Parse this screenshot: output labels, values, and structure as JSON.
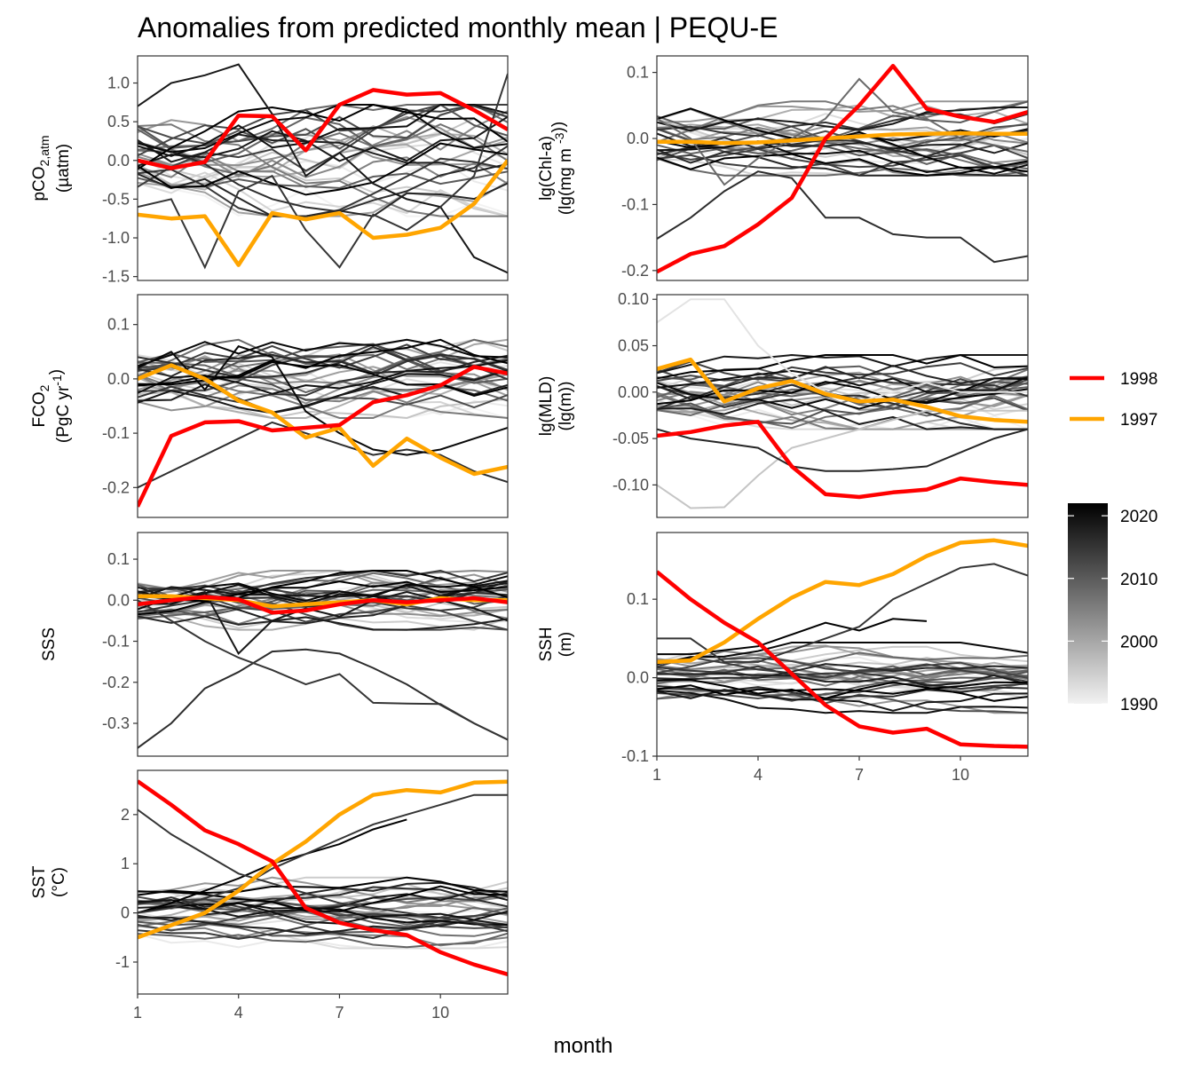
{
  "title": "Anomalies from predicted monthly mean | PEQU-E",
  "xlabel": "month",
  "legend": {
    "highlight": [
      {
        "name": "1998",
        "color": "#ff0000"
      },
      {
        "name": "1997",
        "color": "#ffa500"
      }
    ],
    "colorbar": {
      "min": 1990,
      "max": 2022,
      "ticks": [
        "1990",
        "2000",
        "2010",
        "2020"
      ],
      "low_color": "#f2f2f2",
      "high_color": "#000000"
    }
  },
  "chart_data": [
    {
      "type": "line",
      "panel": "pCO2",
      "ylabel_lines": [
        "pCO2,atm",
        "(µatm)"
      ],
      "xlim": [
        1,
        12
      ],
      "ylim": [
        -1.55,
        1.35
      ],
      "yticks": [
        -1.5,
        -1.0,
        -0.5,
        0.0,
        0.5,
        1.0
      ],
      "ytick_labels": [
        "-1.5",
        "-1.0",
        "-0.5",
        "0.0",
        "0.5",
        "1.0"
      ],
      "x": [
        1,
        2,
        3,
        4,
        5,
        6,
        7,
        8,
        9,
        10,
        11,
        12
      ],
      "series": [
        {
          "name": "1998",
          "values": [
            0.0,
            -0.1,
            -0.02,
            0.58,
            0.57,
            0.13,
            0.72,
            0.91,
            0.85,
            0.87,
            0.65,
            0.4
          ]
        },
        {
          "name": "1997",
          "values": [
            -0.7,
            -0.75,
            -0.72,
            -1.35,
            -0.68,
            -0.76,
            -0.68,
            -1.0,
            -0.96,
            -0.87,
            -0.56,
            0.0
          ]
        }
      ],
      "background_seed": 11,
      "background_spread": 0.45,
      "background_step": 0.3,
      "background_extra": [
        {
          "x": [
            1,
            2,
            3,
            4,
            5,
            6,
            7,
            8,
            9,
            10,
            11,
            12
          ],
          "values": [
            0.7,
            1.0,
            1.1,
            1.24,
            0.6,
            -0.2,
            0.1,
            -0.3,
            -0.5,
            -0.6,
            -1.25,
            -1.45
          ],
          "year": 2019
        },
        {
          "x": [
            1,
            2,
            3,
            4,
            5,
            6,
            7,
            8,
            9,
            10,
            11,
            12
          ],
          "values": [
            -0.6,
            -0.5,
            -1.38,
            -0.4,
            -0.2,
            -0.9,
            -1.38,
            -0.7,
            -0.9,
            -0.6,
            -0.2,
            1.12
          ],
          "year": 2015
        }
      ]
    },
    {
      "type": "line",
      "panel": "Chl",
      "ylabel_lines": [
        "lg(Chl-a)",
        "(lg(mg m-3))"
      ],
      "xlim": [
        1,
        12
      ],
      "ylim": [
        -0.215,
        0.125
      ],
      "yticks": [
        -0.2,
        -0.1,
        0.0,
        0.1
      ],
      "ytick_labels": [
        "-0.2",
        "-0.1",
        "0.0",
        "0.1"
      ],
      "x": [
        1,
        2,
        3,
        4,
        5,
        6,
        7,
        8,
        9,
        10,
        11,
        12
      ],
      "series": [
        {
          "name": "1998",
          "values": [
            -0.202,
            -0.175,
            -0.163,
            -0.13,
            -0.09,
            0.0,
            0.05,
            0.11,
            0.045,
            0.033,
            0.025,
            0.04
          ]
        },
        {
          "name": "1997",
          "values": [
            -0.005,
            -0.005,
            -0.007,
            -0.006,
            -0.003,
            0.0,
            0.003,
            0.006,
            0.007,
            0.008,
            0.007,
            0.007
          ]
        }
      ],
      "background_seed": 23,
      "background_spread": 0.035,
      "background_step": 0.02,
      "background_extra": [
        {
          "x": [
            1,
            2,
            3,
            4,
            5,
            6,
            7,
            8,
            9,
            10,
            11,
            12
          ],
          "values": [
            -0.152,
            -0.12,
            -0.08,
            -0.05,
            -0.06,
            -0.12,
            -0.12,
            -0.145,
            -0.15,
            -0.15,
            -0.187,
            -0.178
          ],
          "year": 2016
        },
        {
          "x": [
            1,
            2,
            3,
            4,
            5,
            6,
            7,
            8,
            9,
            10,
            11,
            12
          ],
          "values": [
            0.03,
            0.0,
            -0.07,
            -0.03,
            0.0,
            0.03,
            0.09,
            0.04,
            0.03,
            0.0,
            -0.01,
            -0.02
          ],
          "year": 2008
        }
      ]
    },
    {
      "type": "line",
      "panel": "FCO2",
      "ylabel_lines": [
        "FCO2",
        "(PgC yr-1)"
      ],
      "xlim": [
        1,
        12
      ],
      "ylim": [
        -0.255,
        0.155
      ],
      "yticks": [
        -0.2,
        -0.1,
        0.0,
        0.1
      ],
      "ytick_labels": [
        "-0.2",
        "-0.1",
        "0.0",
        "0.1"
      ],
      "x": [
        1,
        2,
        3,
        4,
        5,
        6,
        7,
        8,
        9,
        10,
        11,
        12
      ],
      "series": [
        {
          "name": "1998",
          "values": [
            -0.235,
            -0.105,
            -0.08,
            -0.078,
            -0.095,
            -0.09,
            -0.085,
            -0.043,
            -0.03,
            -0.012,
            0.022,
            0.01
          ]
        },
        {
          "name": "1997",
          "values": [
            0.0,
            0.025,
            0.0,
            -0.04,
            -0.062,
            -0.108,
            -0.09,
            -0.16,
            -0.11,
            -0.145,
            -0.175,
            -0.162
          ]
        }
      ],
      "background_seed": 37,
      "background_spread": 0.045,
      "background_step": 0.03,
      "background_extra": [
        {
          "x": [
            1,
            2,
            3,
            4,
            5,
            6,
            7,
            8,
            9,
            10,
            11,
            12
          ],
          "values": [
            -0.2,
            -0.17,
            -0.14,
            -0.11,
            -0.08,
            -0.1,
            -0.12,
            -0.14,
            -0.13,
            -0.14,
            -0.17,
            -0.19
          ],
          "year": 2016
        },
        {
          "x": [
            1,
            2,
            3,
            4,
            5,
            6,
            7,
            8,
            9,
            10,
            11,
            12
          ],
          "values": [
            0.02,
            0.05,
            -0.02,
            0.06,
            0.04,
            -0.06,
            -0.1,
            -0.13,
            -0.14,
            -0.13,
            -0.11,
            -0.09
          ],
          "year": 2021
        }
      ]
    },
    {
      "type": "line",
      "panel": "MLD",
      "ylabel_lines": [
        "lg(MLD)",
        "(lg(m))"
      ],
      "xlim": [
        1,
        12
      ],
      "ylim": [
        -0.135,
        0.105
      ],
      "yticks": [
        -0.1,
        -0.05,
        0.0,
        0.05,
        0.1
      ],
      "ytick_labels": [
        "-0.10",
        "-0.05",
        "0.00",
        "0.05",
        "0.10"
      ],
      "x": [
        1,
        2,
        3,
        4,
        5,
        6,
        7,
        8,
        9,
        10,
        11,
        12
      ],
      "series": [
        {
          "name": "1998",
          "values": [
            -0.047,
            -0.043,
            -0.036,
            -0.032,
            -0.08,
            -0.11,
            -0.113,
            -0.108,
            -0.105,
            -0.093,
            -0.097,
            -0.1
          ]
        },
        {
          "name": "1997",
          "values": [
            0.025,
            0.035,
            -0.01,
            0.004,
            0.012,
            -0.002,
            -0.01,
            -0.008,
            -0.016,
            -0.026,
            -0.03,
            -0.032
          ]
        }
      ],
      "background_seed": 53,
      "background_spread": 0.025,
      "background_step": 0.015,
      "background_extra": [
        {
          "x": [
            1,
            2,
            3,
            4,
            5,
            6,
            7,
            8,
            9,
            10,
            11,
            12
          ],
          "values": [
            0.075,
            0.1,
            0.1,
            0.05,
            0.02,
            0.0,
            -0.01,
            0.0,
            0.01,
            0.0,
            0.0,
            0.0
          ],
          "year": 1992
        },
        {
          "x": [
            1,
            2,
            3,
            4,
            5,
            6,
            7,
            8,
            9,
            10,
            11,
            12
          ],
          "values": [
            -0.1,
            -0.125,
            -0.124,
            -0.09,
            -0.06,
            -0.05,
            -0.04,
            -0.03,
            -0.02,
            -0.02,
            -0.02,
            -0.02
          ],
          "year": 1996
        },
        {
          "x": [
            1,
            2,
            3,
            4,
            5,
            6,
            7,
            8,
            9,
            10,
            11,
            12
          ],
          "values": [
            -0.04,
            -0.05,
            -0.055,
            -0.06,
            -0.08,
            -0.085,
            -0.085,
            -0.083,
            -0.08,
            -0.065,
            -0.05,
            -0.04
          ],
          "year": 2017
        }
      ]
    },
    {
      "type": "line",
      "panel": "SSS",
      "ylabel_lines": [
        "SSS"
      ],
      "xlim": [
        1,
        12
      ],
      "ylim": [
        -0.38,
        0.165
      ],
      "yticks": [
        -0.3,
        -0.2,
        -0.1,
        0.0,
        0.1
      ],
      "ytick_labels": [
        "-0.3",
        "-0.2",
        "-0.1",
        "0.0",
        "0.1"
      ],
      "x": [
        1,
        2,
        3,
        4,
        5,
        6,
        7,
        8,
        9,
        10,
        11,
        12
      ],
      "series": [
        {
          "name": "1998",
          "values": [
            -0.01,
            0.0,
            0.008,
            0.002,
            -0.03,
            -0.025,
            -0.01,
            0.0,
            -0.005,
            0.0,
            0.005,
            -0.005
          ]
        },
        {
          "name": "1997",
          "values": [
            0.01,
            0.01,
            0.005,
            0.0,
            -0.015,
            -0.01,
            -0.005,
            0.0,
            -0.01,
            0.005,
            0.0,
            0.0
          ]
        }
      ],
      "background_seed": 71,
      "background_spread": 0.045,
      "background_step": 0.03,
      "background_extra": [
        {
          "x": [
            1,
            2,
            3,
            4,
            5,
            6,
            7,
            8,
            9,
            10,
            11,
            12
          ],
          "values": [
            -0.36,
            -0.3,
            -0.215,
            -0.175,
            -0.125,
            -0.12,
            -0.13,
            -0.165,
            -0.205,
            -0.255,
            -0.3,
            -0.34
          ],
          "year": 2016
        },
        {
          "x": [
            1,
            2,
            3,
            4,
            5,
            6,
            7,
            8,
            9,
            10,
            11,
            12
          ],
          "values": [
            0.0,
            -0.05,
            -0.1,
            -0.14,
            -0.17,
            -0.205,
            -0.18,
            -0.25,
            -0.252,
            -0.253,
            -0.3,
            -0.34
          ],
          "year": 2015
        },
        {
          "x": [
            1,
            2,
            3,
            4,
            5,
            6,
            7,
            8,
            9,
            10,
            11,
            12
          ],
          "values": [
            0.02,
            0.0,
            0.02,
            -0.13,
            -0.05,
            -0.02,
            -0.04,
            0.0,
            0.02,
            0.0,
            -0.02,
            -0.05
          ],
          "year": 2019
        }
      ]
    },
    {
      "type": "line",
      "panel": "SSH",
      "ylabel_lines": [
        "SSH",
        "(m)"
      ],
      "xlim": [
        1,
        12
      ],
      "ylim": [
        -0.1,
        0.185
      ],
      "yticks": [
        -0.1,
        0.0,
        0.1
      ],
      "ytick_labels": [
        "-0.1",
        "0.0",
        "0.1"
      ],
      "xticks": [
        1,
        4,
        7,
        10
      ],
      "xtick_labels": [
        "1",
        "4",
        "7",
        "10"
      ],
      "x": [
        1,
        2,
        3,
        4,
        5,
        6,
        7,
        8,
        9,
        10,
        11,
        12
      ],
      "series": [
        {
          "name": "1998",
          "values": [
            0.135,
            0.1,
            0.07,
            0.045,
            0.005,
            -0.035,
            -0.062,
            -0.07,
            -0.065,
            -0.085,
            -0.087,
            -0.088
          ]
        },
        {
          "name": "1997",
          "values": [
            0.02,
            0.022,
            0.045,
            0.075,
            0.102,
            0.122,
            0.118,
            0.132,
            0.155,
            0.172,
            0.175,
            0.168
          ]
        }
      ],
      "background_seed": 89,
      "background_spread": 0.028,
      "background_step": 0.012,
      "background_extra": [
        {
          "x": [
            1,
            2,
            3,
            4,
            5,
            6,
            7,
            8,
            9
          ],
          "values": [
            0.03,
            0.03,
            0.035,
            0.04,
            0.055,
            0.07,
            0.06,
            0.075,
            0.072
          ],
          "year": 2023
        },
        {
          "x": [
            1,
            2,
            3,
            4,
            5,
            6,
            7,
            8,
            9,
            10,
            11,
            12
          ],
          "values": [
            0.05,
            0.05,
            0.02,
            0.02,
            0.035,
            0.05,
            0.065,
            0.1,
            0.12,
            0.14,
            0.145,
            0.13
          ],
          "year": 2015
        }
      ]
    },
    {
      "type": "line",
      "panel": "SST",
      "ylabel_lines": [
        "SST",
        "(°C)"
      ],
      "xlim": [
        1,
        12
      ],
      "ylim": [
        -1.65,
        2.9
      ],
      "yticks": [
        -1,
        0,
        1,
        2
      ],
      "ytick_labels": [
        "-1",
        "0",
        "1",
        "2"
      ],
      "xticks": [
        1,
        4,
        7,
        10
      ],
      "xtick_labels": [
        "1",
        "4",
        "7",
        "10"
      ],
      "x": [
        1,
        2,
        3,
        4,
        5,
        6,
        7,
        8,
        9,
        10,
        11,
        12
      ],
      "series": [
        {
          "name": "1998",
          "values": [
            2.68,
            2.2,
            1.68,
            1.4,
            1.05,
            0.1,
            -0.2,
            -0.35,
            -0.45,
            -0.8,
            -1.05,
            -1.25
          ]
        },
        {
          "name": "1997",
          "values": [
            -0.5,
            -0.25,
            0.0,
            0.45,
            1.0,
            1.45,
            2.0,
            2.4,
            2.5,
            2.45,
            2.65,
            2.67
          ]
        }
      ],
      "background_seed": 101,
      "background_spread": 0.45,
      "background_step": 0.2,
      "background_extra": [
        {
          "x": [
            1,
            2,
            3,
            4,
            5,
            6,
            7,
            8,
            9
          ],
          "values": [
            0.0,
            0.2,
            0.45,
            0.7,
            1.0,
            1.2,
            1.4,
            1.7,
            1.9
          ],
          "year": 2023
        },
        {
          "x": [
            1,
            2,
            3,
            4,
            5,
            6,
            7,
            8,
            9,
            10,
            11,
            12
          ],
          "values": [
            2.1,
            1.6,
            1.2,
            0.8,
            0.6,
            0.4,
            0.2,
            0.1,
            0.0,
            -0.1,
            -0.2,
            -0.3
          ],
          "year": 2015
        },
        {
          "x": [
            1,
            2,
            3,
            4,
            5,
            6,
            7,
            8,
            9,
            10,
            11,
            12
          ],
          "values": [
            0.0,
            0.1,
            0.3,
            0.5,
            0.9,
            1.2,
            1.5,
            1.8,
            2.0,
            2.2,
            2.4,
            2.4
          ],
          "year": 2015
        }
      ]
    }
  ]
}
